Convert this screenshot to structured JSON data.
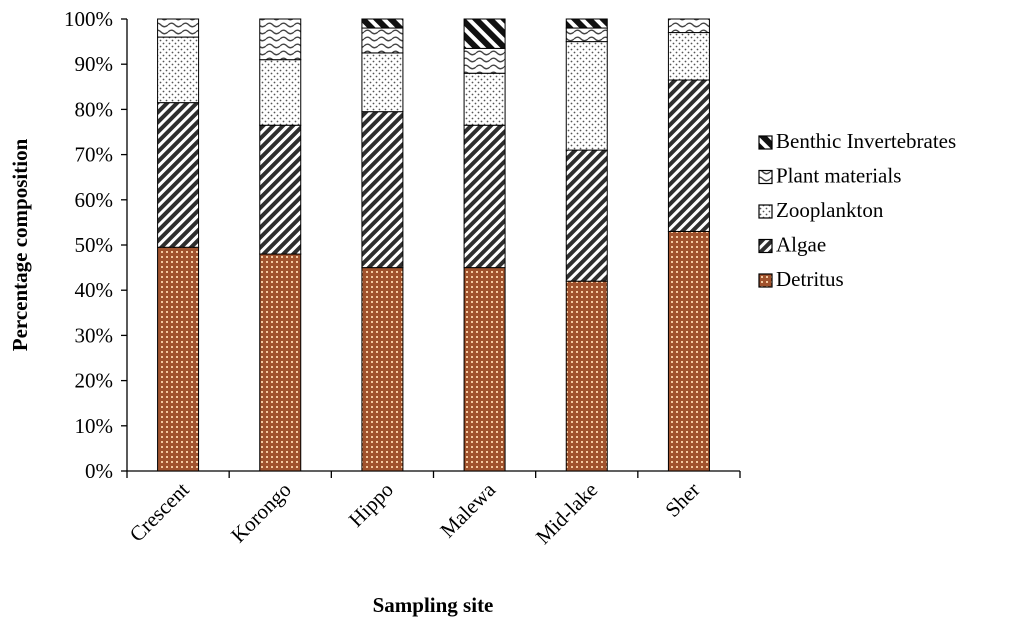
{
  "chart_data": {
    "type": "bar",
    "stacked": true,
    "percent": true,
    "title": "",
    "xlabel": "Sampling site",
    "ylabel": "Percentage composition",
    "ylim": [
      0,
      100
    ],
    "yticks": [
      "0%",
      "10%",
      "20%",
      "30%",
      "40%",
      "50%",
      "60%",
      "70%",
      "80%",
      "90%",
      "100%"
    ],
    "categories": [
      "Crescent",
      "Korongo",
      "Hippo",
      "Malewa",
      "Mid-lake",
      "Sher"
    ],
    "series": [
      {
        "name": "Detritus",
        "values": [
          49.5,
          48,
          45,
          45,
          42,
          53
        ]
      },
      {
        "name": "Algae",
        "values": [
          32,
          28.5,
          34.5,
          31.5,
          29,
          33.5
        ]
      },
      {
        "name": "Zooplankton",
        "values": [
          14.5,
          14.5,
          13,
          11.5,
          24,
          10.5
        ]
      },
      {
        "name": "Plant materials",
        "values": [
          4,
          9,
          5.5,
          5.5,
          3,
          3
        ]
      },
      {
        "name": "Benthic Invertebrates",
        "values": [
          0,
          0,
          2,
          6.5,
          2,
          0
        ]
      }
    ],
    "legend_position": "right",
    "legend_order": [
      "Benthic Invertebrates",
      "Plant materials",
      "Zooplankton",
      "Algae",
      "Detritus"
    ],
    "grid": false
  },
  "colors": {
    "detritus_fill": "#a0522d",
    "detritus_dot": "#f3c9a0",
    "pattern_ink": "#3a3a3a",
    "outline": "#000000"
  }
}
